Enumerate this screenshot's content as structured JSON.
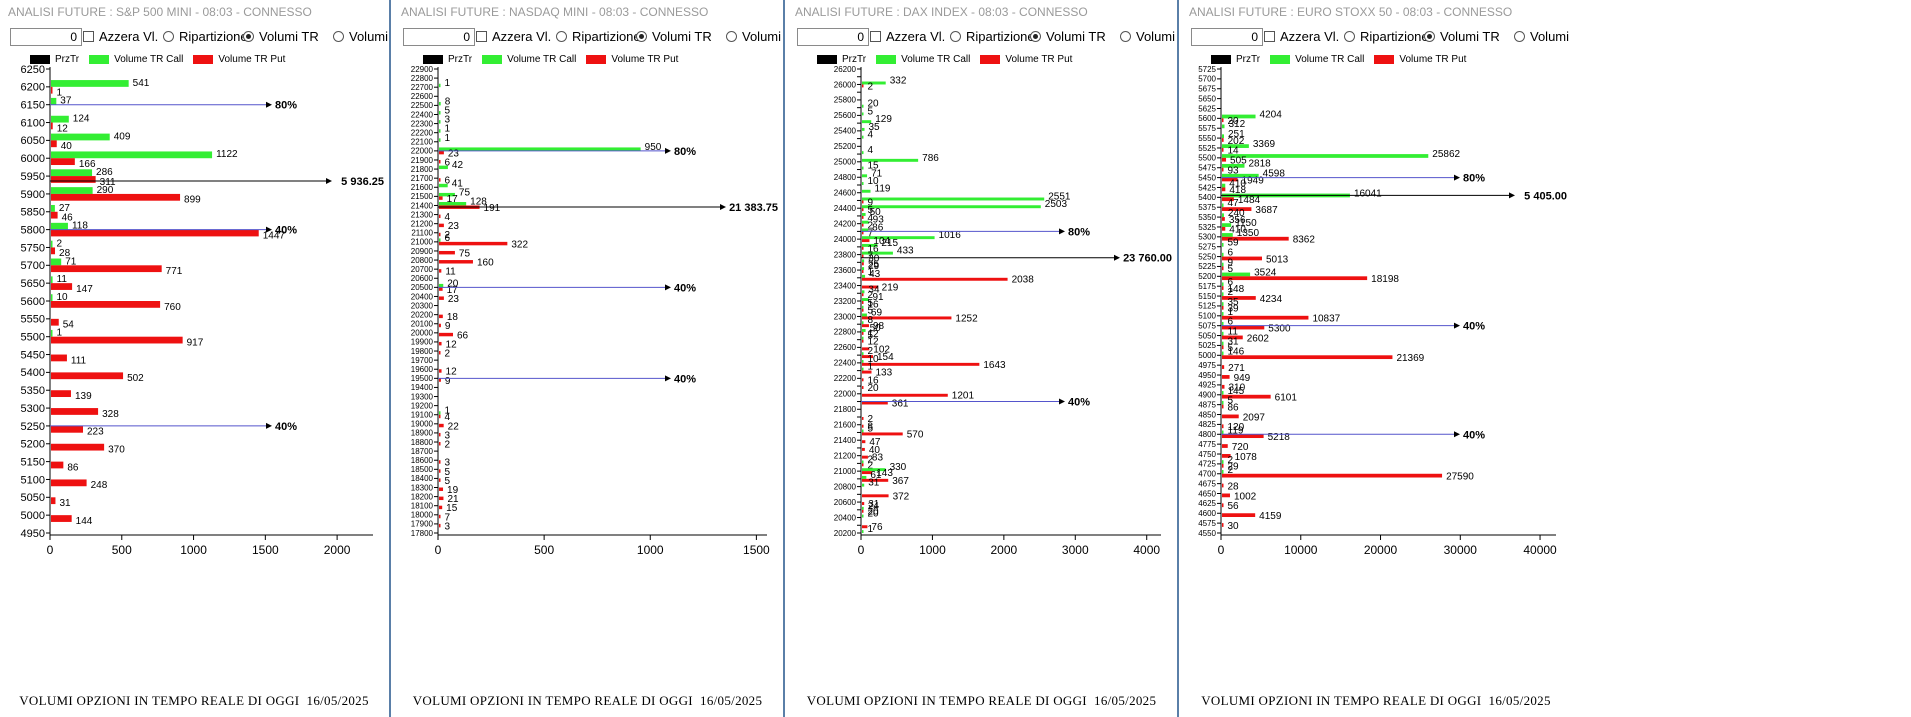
{
  "colors": {
    "call": "#33ee33",
    "put": "#ee1111",
    "prz": "#000000",
    "line": "#5555cc"
  },
  "controls": {
    "input_value": "0",
    "azzera": "Azzera Vl.",
    "ripartizione": "Ripartizione",
    "volumi_tr": "Volumi TR",
    "volumi_st": "Volumi ST"
  },
  "legend": {
    "prz": "PrzTr",
    "call": "Volume TR Call",
    "put": "Volume TR Put"
  },
  "caption": {
    "text": "VOLUMI OPZIONI IN TEMPO REALE DI OGGI",
    "date": "16/05/2025"
  },
  "panels": [
    {
      "title": "ANALISI FUTURE : S&P 500 MINI - 08:03 - CONNESSO",
      "chart_data": {
        "type": "bar",
        "orientation": "horizontal",
        "ylim": [
          4950,
          6250
        ],
        "ytick_step": 50,
        "xlim": [
          0,
          2250
        ],
        "xticks": [
          0,
          500,
          1000,
          1500,
          2000
        ],
        "label_every": 1,
        "price": {
          "value": 5936.25,
          "label": "5 936.25"
        },
        "markers": [
          {
            "y": 6150,
            "label": "80%"
          },
          {
            "y": 5800,
            "label": "40%"
          },
          {
            "y": 5250,
            "label": "40%"
          }
        ],
        "rows": [
          {
            "y": 6200,
            "call": 541,
            "put": 1
          },
          {
            "y": 6150,
            "call": 37,
            "put": null
          },
          {
            "y": 6100,
            "call": 124,
            "put": 12
          },
          {
            "y": 6050,
            "call": 409,
            "put": 40
          },
          {
            "y": 6000,
            "call": 1122,
            "put": 166
          },
          {
            "y": 5950,
            "call": 286,
            "put": 311
          },
          {
            "y": 5900,
            "call": 290,
            "put": 899
          },
          {
            "y": 5850,
            "call": 27,
            "put": 46
          },
          {
            "y": 5800,
            "call": 118,
            "put": 1447
          },
          {
            "y": 5750,
            "call": 2,
            "put": 28
          },
          {
            "y": 5700,
            "call": 71,
            "put": 771
          },
          {
            "y": 5650,
            "call": 11,
            "put": 147
          },
          {
            "y": 5600,
            "call": 10,
            "put": 760
          },
          {
            "y": 5550,
            "call": null,
            "put": 54
          },
          {
            "y": 5500,
            "call": 1,
            "put": 917
          },
          {
            "y": 5450,
            "call": null,
            "put": 111
          },
          {
            "y": 5400,
            "call": null,
            "put": 502
          },
          {
            "y": 5350,
            "call": null,
            "put": 139
          },
          {
            "y": 5300,
            "call": null,
            "put": 328
          },
          {
            "y": 5250,
            "call": null,
            "put": 223
          },
          {
            "y": 5200,
            "call": null,
            "put": 370
          },
          {
            "y": 5150,
            "call": null,
            "put": 86
          },
          {
            "y": 5100,
            "call": null,
            "put": 248
          },
          {
            "y": 5050,
            "call": null,
            "put": 31
          },
          {
            "y": 5000,
            "call": null,
            "put": 144
          }
        ]
      }
    },
    {
      "title": "ANALISI FUTURE : NASDAQ MINI - 08:03 - CONNESSO",
      "chart_data": {
        "type": "bar",
        "orientation": "horizontal",
        "ylim": [
          17800,
          22900
        ],
        "ytick_step": 100,
        "xlim": [
          0,
          1550
        ],
        "xticks": [
          0,
          500,
          1000,
          1500
        ],
        "label_every": 1,
        "price": {
          "value": 21383.75,
          "label": "21 383.75"
        },
        "markers": [
          {
            "y": 22000,
            "label": "80%"
          },
          {
            "y": 20500,
            "label": "40%"
          },
          {
            "y": 19500,
            "label": "40%"
          }
        ],
        "rows": [
          {
            "y": 22700,
            "call": 1,
            "put": null
          },
          {
            "y": 22500,
            "call": 8,
            "put": null
          },
          {
            "y": 22400,
            "call": 5,
            "put": null
          },
          {
            "y": 22300,
            "call": 3,
            "put": null
          },
          {
            "y": 22200,
            "call": 1,
            "put": null
          },
          {
            "y": 22100,
            "call": 1,
            "put": null
          },
          {
            "y": 22000,
            "call": 950,
            "put": 23
          },
          {
            "y": 21900,
            "call": null,
            "put": 6
          },
          {
            "y": 21800,
            "call": 42,
            "put": null
          },
          {
            "y": 21700,
            "call": null,
            "put": 6
          },
          {
            "y": 21600,
            "call": 41,
            "put": null
          },
          {
            "y": 21500,
            "call": 75,
            "put": 17
          },
          {
            "y": 21400,
            "call": 128,
            "put": 191
          },
          {
            "y": 21300,
            "call": null,
            "put": 4
          },
          {
            "y": 21200,
            "call": null,
            "put": 23
          },
          {
            "y": 21100,
            "call": null,
            "put": 2
          },
          {
            "y": 21000,
            "call": 6,
            "put": 322
          },
          {
            "y": 20900,
            "call": null,
            "put": 75
          },
          {
            "y": 20800,
            "call": null,
            "put": 160
          },
          {
            "y": 20700,
            "call": null,
            "put": 11
          },
          {
            "y": 20500,
            "call": 20,
            "put": 17
          },
          {
            "y": 20400,
            "call": null,
            "put": 23
          },
          {
            "y": 20200,
            "call": null,
            "put": 18
          },
          {
            "y": 20100,
            "call": null,
            "put": 9
          },
          {
            "y": 20000,
            "call": null,
            "put": 66
          },
          {
            "y": 19900,
            "call": null,
            "put": 12
          },
          {
            "y": 19800,
            "call": null,
            "put": 2
          },
          {
            "y": 19600,
            "call": null,
            "put": 12
          },
          {
            "y": 19500,
            "call": null,
            "put": 9
          },
          {
            "y": 19100,
            "call": 1,
            "put": 4
          },
          {
            "y": 19000,
            "call": null,
            "put": 22
          },
          {
            "y": 18900,
            "call": null,
            "put": 3
          },
          {
            "y": 18800,
            "call": null,
            "put": 2
          },
          {
            "y": 18600,
            "call": null,
            "put": 3
          },
          {
            "y": 18500,
            "call": null,
            "put": 5
          },
          {
            "y": 18400,
            "call": null,
            "put": 5
          },
          {
            "y": 18300,
            "call": null,
            "put": 19
          },
          {
            "y": 18200,
            "call": null,
            "put": 21
          },
          {
            "y": 18100,
            "call": null,
            "put": 15
          },
          {
            "y": 18000,
            "call": null,
            "put": 7
          },
          {
            "y": 17900,
            "call": null,
            "put": 3
          }
        ]
      }
    },
    {
      "title": "ANALISI FUTURE : DAX INDEX - 08:03 - CONNESSO",
      "chart_data": {
        "type": "bar",
        "orientation": "horizontal",
        "ylim": [
          20200,
          26200
        ],
        "ytick_step": 100,
        "xlim": [
          0,
          4200
        ],
        "xticks": [
          0,
          1000,
          2000,
          3000,
          4000
        ],
        "label_every": 2,
        "price": {
          "value": 23760,
          "label": "23 760.00"
        },
        "markers": [
          {
            "y": 24100,
            "label": "80%"
          },
          {
            "y": 21900,
            "label": "40%"
          }
        ],
        "rows": [
          {
            "y": 26000,
            "call": 332,
            "put": 2
          },
          {
            "y": 25700,
            "call": 20,
            "put": null
          },
          {
            "y": 25600,
            "call": 5,
            "put": null
          },
          {
            "y": 25500,
            "call": 129,
            "put": null
          },
          {
            "y": 25400,
            "call": 35,
            "put": null
          },
          {
            "y": 25300,
            "call": 4,
            "put": null
          },
          {
            "y": 25100,
            "call": 4,
            "put": null
          },
          {
            "y": 25000,
            "call": 786,
            "put": null
          },
          {
            "y": 24900,
            "call": 15,
            "put": null
          },
          {
            "y": 24800,
            "call": 71,
            "put": null
          },
          {
            "y": 24700,
            "call": 10,
            "put": null
          },
          {
            "y": 24600,
            "call": 119,
            "put": null
          },
          {
            "y": 24500,
            "call": 2551,
            "put": 9
          },
          {
            "y": 24400,
            "call": 2503,
            "put": 5
          },
          {
            "y": 24300,
            "call": 50,
            "put": 4
          },
          {
            "y": 24200,
            "call": 93,
            "put": 2
          },
          {
            "y": 24100,
            "call": 86,
            "put": 7
          },
          {
            "y": 24000,
            "call": 1016,
            "put": 104
          },
          {
            "y": 23900,
            "call": 215,
            "put": 16
          },
          {
            "y": 23800,
            "call": 433,
            "put": 7
          },
          {
            "y": 23700,
            "call": 30,
            "put": 25
          },
          {
            "y": 23600,
            "call": 29,
            "put": 1
          },
          {
            "y": 23500,
            "call": 43,
            "put": 2038
          },
          {
            "y": 23400,
            "call": null,
            "put": 219
          },
          {
            "y": 23300,
            "call": 34,
            "put": 2
          },
          {
            "y": 23200,
            "call": 91,
            "put": 5
          },
          {
            "y": 23100,
            "call": 16,
            "put": 5
          },
          {
            "y": 23000,
            "call": 69,
            "put": 1252
          },
          {
            "y": 22900,
            "call": 8,
            "put": 98
          },
          {
            "y": 22800,
            "call": 50,
            "put": 12
          },
          {
            "y": 22700,
            "call": 5,
            "put": 12
          },
          {
            "y": 22600,
            "call": null,
            "put": 102
          },
          {
            "y": 22500,
            "call": 2,
            "put": 154
          },
          {
            "y": 22400,
            "call": 10,
            "put": 1643
          },
          {
            "y": 22300,
            "call": 1,
            "put": 133
          },
          {
            "y": 22200,
            "call": null,
            "put": 16
          },
          {
            "y": 22100,
            "call": null,
            "put": 20
          },
          {
            "y": 22000,
            "call": null,
            "put": 1201
          },
          {
            "y": 21900,
            "call": null,
            "put": 361
          },
          {
            "y": 21700,
            "call": null,
            "put": 2
          },
          {
            "y": 21600,
            "call": null,
            "put": 8
          },
          {
            "y": 21500,
            "call": 5,
            "put": 570
          },
          {
            "y": 21400,
            "call": null,
            "put": 47
          },
          {
            "y": 21300,
            "call": null,
            "put": 40
          },
          {
            "y": 21200,
            "call": null,
            "put": 83
          },
          {
            "y": 21100,
            "call": 2,
            "put": 2
          },
          {
            "y": 21000,
            "call": 330,
            "put": 143
          },
          {
            "y": 20900,
            "call": 61,
            "put": 367
          },
          {
            "y": 20800,
            "call": 31,
            "put": null
          },
          {
            "y": 20700,
            "call": null,
            "put": 372
          },
          {
            "y": 20600,
            "call": null,
            "put": 31
          },
          {
            "y": 20500,
            "call": 24,
            "put": 20
          },
          {
            "y": 20400,
            "call": 20,
            "put": null
          },
          {
            "y": 20300,
            "call": null,
            "put": 76
          },
          {
            "y": 20200,
            "call": 1,
            "put": null
          }
        ]
      }
    },
    {
      "title": "ANALISI FUTURE : EURO STOXX 50 - 08:03 - CONNESSO",
      "chart_data": {
        "type": "bar",
        "orientation": "horizontal",
        "ylim": [
          4550,
          5725
        ],
        "ytick_step": 25,
        "xlim": [
          0,
          42000
        ],
        "xticks": [
          0,
          10000,
          20000,
          30000,
          40000
        ],
        "label_every": 1,
        "price": {
          "value": 5405,
          "label": "5 405.00"
        },
        "markers": [
          {
            "y": 5450,
            "label": "80%"
          },
          {
            "y": 5075,
            "label": "40%"
          },
          {
            "y": 4800,
            "label": "40%"
          }
        ],
        "rows": [
          {
            "y": 5600,
            "call": 4204,
            "put": 20
          },
          {
            "y": 5575,
            "call": 312,
            "put": null
          },
          {
            "y": 5550,
            "call": 251,
            "put": 202
          },
          {
            "y": 5525,
            "call": 3369,
            "put": 14
          },
          {
            "y": 5500,
            "call": 25862,
            "put": 505
          },
          {
            "y": 5475,
            "call": 2818,
            "put": 93
          },
          {
            "y": 5450,
            "call": 4598,
            "put": 1949
          },
          {
            "y": 5425,
            "call": 410,
            "put": 418
          },
          {
            "y": 5400,
            "call": 16041,
            "put": 1484
          },
          {
            "y": 5375,
            "call": 47,
            "put": 3687
          },
          {
            "y": 5350,
            "call": 240,
            "put": 356
          },
          {
            "y": 5325,
            "call": 1150,
            "put": 410
          },
          {
            "y": 5300,
            "call": 1350,
            "put": 8362
          },
          {
            "y": 5275,
            "call": 59,
            "put": null
          },
          {
            "y": 5250,
            "call": 6,
            "put": 5013
          },
          {
            "y": 5225,
            "call": 9,
            "put": 5
          },
          {
            "y": 5200,
            "call": 3524,
            "put": 18198
          },
          {
            "y": 5175,
            "call": 6,
            "put": 148
          },
          {
            "y": 5150,
            "call": 2,
            "put": 4234
          },
          {
            "y": 5125,
            "call": 35,
            "put": 39
          },
          {
            "y": 5100,
            "call": 1,
            "put": 10837
          },
          {
            "y": 5075,
            "call": 6,
            "put": 5300
          },
          {
            "y": 5050,
            "call": 11,
            "put": 2602
          },
          {
            "y": 5025,
            "call": 31,
            "put": 5
          },
          {
            "y": 5000,
            "call": 146,
            "put": 21369
          },
          {
            "y": 4975,
            "call": null,
            "put": 271
          },
          {
            "y": 4950,
            "call": null,
            "put": 949
          },
          {
            "y": 4925,
            "call": null,
            "put": 310
          },
          {
            "y": 4900,
            "call": 145,
            "put": 6101
          },
          {
            "y": 4875,
            "call": 5,
            "put": 86
          },
          {
            "y": 4850,
            "call": null,
            "put": 2097
          },
          {
            "y": 4825,
            "call": null,
            "put": 120
          },
          {
            "y": 4800,
            "call": 119,
            "put": 5218
          },
          {
            "y": 4775,
            "call": null,
            "put": 720
          },
          {
            "y": 4750,
            "call": null,
            "put": 1078
          },
          {
            "y": 4725,
            "call": 2,
            "put": 29
          },
          {
            "y": 4700,
            "call": 2,
            "put": 27590
          },
          {
            "y": 4675,
            "call": null,
            "put": 28
          },
          {
            "y": 4650,
            "call": null,
            "put": 1002
          },
          {
            "y": 4625,
            "call": null,
            "put": 56
          },
          {
            "y": 4600,
            "call": null,
            "put": 4159
          },
          {
            "y": 4575,
            "call": null,
            "put": 30
          }
        ]
      }
    }
  ]
}
